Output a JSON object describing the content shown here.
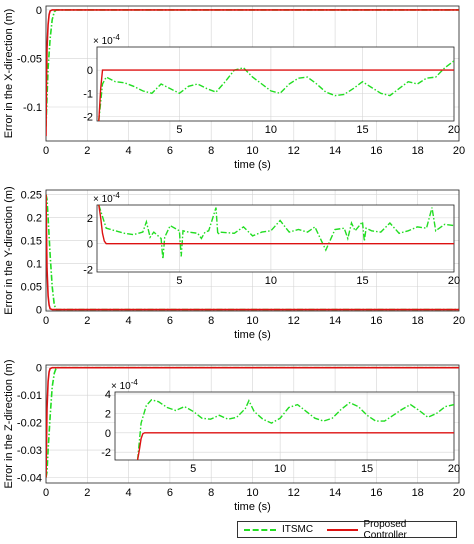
{
  "chart_data": [
    {
      "type": "line",
      "ylabel": "Error in the X-direction (m)",
      "xlabel": "time (s)",
      "xlim": [
        0,
        20
      ],
      "ylim": [
        -0.135,
        0.004
      ],
      "xticks": [
        "0",
        "2",
        "4",
        "6",
        "8",
        "10",
        "12",
        "14",
        "16",
        "18",
        "20"
      ],
      "yticks": [
        "0",
        "-0.05",
        "-0.1"
      ],
      "grid": true,
      "series": [
        {
          "name": "ITSMC",
          "color": "#22dd22",
          "style": "dashdot",
          "x": [
            0,
            0.05,
            0.1,
            0.2,
            0.3,
            0.4,
            0.5,
            20
          ],
          "y": [
            -0.12,
            -0.09,
            -0.06,
            -0.03,
            -0.01,
            -0.002,
            0,
            0
          ]
        },
        {
          "name": "Proposed Controller",
          "color": "#dd1111",
          "style": "solid",
          "x": [
            0,
            0.02,
            0.05,
            0.1,
            0.15,
            0.2,
            0.3,
            20
          ],
          "y": [
            -0.13,
            -0.08,
            -0.04,
            -0.015,
            -0.005,
            -0.001,
            0,
            0
          ]
        }
      ],
      "inset": {
        "xlim": [
          0.5,
          20
        ],
        "ylim": [
          -2.2,
          1
        ],
        "xticks": [
          "5",
          "10",
          "15",
          "20"
        ],
        "yticks": [
          "0",
          "-1",
          "-2"
        ],
        "exponent": "× 10^-4",
        "series": [
          {
            "name": "ITSMC",
            "x": [
              0.6,
              0.8,
              1,
              1.5,
              2,
              2.5,
              3,
              3.5,
              4,
              4.5,
              5,
              5.5,
              6,
              6.5,
              7,
              7.5,
              8,
              8.5,
              9,
              9.5,
              10,
              10.5,
              11,
              11.5,
              12,
              12.5,
              13,
              13.5,
              14,
              14.5,
              15,
              15.5,
              16,
              16.5,
              17,
              17.5,
              18,
              18.5,
              19,
              19.5,
              20
            ],
            "y": [
              -2.2,
              -0.6,
              -0.3,
              -0.5,
              -0.55,
              -0.7,
              -0.9,
              -1.0,
              -0.6,
              -0.8,
              -1.0,
              -0.7,
              -0.6,
              -0.8,
              -0.95,
              -0.5,
              0,
              0.1,
              -0.3,
              -0.6,
              -0.9,
              -1.0,
              -0.6,
              -0.35,
              -0.3,
              -0.6,
              -0.95,
              -1.1,
              -1.05,
              -0.8,
              -0.5,
              -0.75,
              -1.0,
              -1.1,
              -0.8,
              -0.5,
              -0.6,
              -0.35,
              -0.3,
              0.1,
              0.4
            ]
          },
          {
            "name": "Proposed Controller",
            "x": [
              0.6,
              0.7,
              0.8,
              1,
              2,
              20
            ],
            "y": [
              -2.2,
              -0.8,
              0,
              0,
              0,
              0
            ]
          }
        ]
      }
    },
    {
      "type": "line",
      "ylabel": "Error in the Y-direction (m)",
      "xlabel": "time (s)",
      "xlim": [
        0,
        20
      ],
      "ylim": [
        -0.003,
        0.26
      ],
      "xticks": [
        "0",
        "2",
        "4",
        "6",
        "8",
        "10",
        "12",
        "14",
        "16",
        "18",
        "20"
      ],
      "yticks": [
        "0.25",
        "0.2",
        "0.15",
        "0.1",
        "0.05",
        "0"
      ],
      "grid": true,
      "series": [
        {
          "name": "ITSMC",
          "color": "#22dd22",
          "style": "dashdot",
          "x": [
            0,
            0.05,
            0.1,
            0.2,
            0.3,
            0.4,
            0.5,
            20
          ],
          "y": [
            0.25,
            0.24,
            0.2,
            0.12,
            0.05,
            0.01,
            0,
            0
          ]
        },
        {
          "name": "Proposed Controller",
          "color": "#dd1111",
          "style": "solid",
          "x": [
            0,
            0.02,
            0.05,
            0.1,
            0.15,
            0.2,
            0.3,
            20
          ],
          "y": [
            0.25,
            0.18,
            0.09,
            0.03,
            0.01,
            0.002,
            0,
            0
          ]
        }
      ],
      "inset": {
        "xlim": [
          0.5,
          20
        ],
        "ylim": [
          -2.2,
          3
        ],
        "xticks": [
          "5",
          "10",
          "15",
          "20"
        ],
        "yticks": [
          "2",
          "0",
          "-2"
        ],
        "exponent": "× 10^-4",
        "series": [
          {
            "name": "ITSMC",
            "x": [
              0.6,
              1,
              1.5,
              2,
              2.5,
              3,
              3.2,
              3.4,
              3.6,
              4,
              4.1,
              4.2,
              4.5,
              5,
              5.1,
              5.2,
              5.5,
              6,
              6.2,
              6.4,
              6.6,
              7,
              7.1,
              7.2,
              8,
              8.5,
              9,
              9.5,
              10,
              10.5,
              11,
              11.5,
              12,
              12.4,
              12.6,
              13,
              13.5,
              14,
              14.2,
              14.4,
              14.6,
              15,
              15.1,
              15.2,
              15.5,
              16,
              16.5,
              17,
              17.5,
              18,
              18.5,
              18.8,
              19,
              19.5,
              20
            ],
            "y": [
              3,
              1.2,
              1.0,
              0.8,
              0.7,
              0.9,
              1.7,
              0.5,
              0.9,
              0.4,
              -1.2,
              0.5,
              1.4,
              1.0,
              -1.0,
              1.0,
              0.9,
              0.8,
              0.4,
              0.9,
              1.0,
              2.8,
              0.7,
              0.9,
              0.8,
              1.3,
              0.6,
              0.9,
              1.0,
              1.8,
              0.9,
              1.1,
              0.9,
              1.3,
              0.7,
              -0.5,
              1.1,
              1.2,
              0.4,
              1.6,
              1.0,
              1.7,
              0.2,
              1.2,
              1.0,
              0.9,
              1.6,
              0.8,
              1.0,
              1.3,
              1.2,
              2.8,
              1.0,
              1.5,
              1.4
            ]
          },
          {
            "name": "Proposed Controller",
            "x": [
              0.6,
              0.7,
              0.8,
              0.9,
              1,
              2,
              20
            ],
            "y": [
              3,
              2.0,
              0.8,
              0.2,
              0,
              0,
              0
            ]
          }
        ]
      }
    },
    {
      "type": "line",
      "ylabel": "Error in the Z-direction (m)",
      "xlabel": "time (s)",
      "xlim": [
        0,
        20
      ],
      "ylim": [
        -0.042,
        0.001
      ],
      "xticks": [
        "0",
        "2",
        "4",
        "6",
        "8",
        "10",
        "12",
        "14",
        "16",
        "18",
        "20"
      ],
      "yticks": [
        "0",
        "-0.01",
        "-0.02",
        "-0.03",
        "-0.04"
      ],
      "grid": true,
      "series": [
        {
          "name": "ITSMC",
          "color": "#22dd22",
          "style": "dashdot",
          "x": [
            0,
            0.05,
            0.1,
            0.2,
            0.3,
            0.4,
            0.5,
            20
          ],
          "y": [
            -0.04,
            -0.038,
            -0.03,
            -0.018,
            -0.007,
            -0.002,
            0,
            0
          ]
        },
        {
          "name": "Proposed Controller",
          "color": "#dd1111",
          "style": "solid",
          "x": [
            0,
            0.02,
            0.05,
            0.1,
            0.15,
            0.2,
            0.3,
            20
          ],
          "y": [
            -0.04,
            -0.03,
            -0.015,
            -0.005,
            -0.0015,
            -0.0003,
            0,
            0
          ]
        }
      ],
      "inset": {
        "xlim": [
          0.5,
          20
        ],
        "ylim": [
          -2.8,
          4.2
        ],
        "xticks": [
          "5",
          "10",
          "15",
          "20"
        ],
        "yticks": [
          "4",
          "2",
          "0",
          "-2"
        ],
        "exponent": "× 10^-4",
        "series": [
          {
            "name": "ITSMC",
            "x": [
              1.8,
              2,
              2.3,
              2.6,
              3,
              3.5,
              4,
              4.5,
              5,
              5.5,
              6,
              6.5,
              7,
              7.5,
              8,
              8.2,
              8.5,
              9,
              9.5,
              10,
              10.5,
              11,
              11.5,
              12,
              12.5,
              13,
              13.5,
              14,
              14.5,
              15,
              15.5,
              16,
              16.5,
              17,
              17.5,
              18,
              18.5,
              19,
              19.5,
              20
            ],
            "y": [
              -2.8,
              1.0,
              2.8,
              3.4,
              3.2,
              2.6,
              2.3,
              2.7,
              2.2,
              1.5,
              1.4,
              1.8,
              1.4,
              1.6,
              2.5,
              3.3,
              2.2,
              1.4,
              1.0,
              1.5,
              2.6,
              2.9,
              2.2,
              1.5,
              1.2,
              1.5,
              2.4,
              3.1,
              2.7,
              1.8,
              1.2,
              1.2,
              1.8,
              2.4,
              2.9,
              2.3,
              1.6,
              2.0,
              2.7,
              2.9
            ]
          },
          {
            "name": "Proposed Controller",
            "x": [
              1.8,
              1.9,
              2,
              2.1,
              2.2,
              3,
              20
            ],
            "y": [
              -2.8,
              -1.8,
              -0.6,
              -0.1,
              0,
              0,
              0
            ]
          }
        ]
      }
    }
  ],
  "legend": {
    "placement": "bottom-right",
    "entries": [
      {
        "label": "ITSMC",
        "color": "#22dd22",
        "style": "dashdot"
      },
      {
        "label": "Proposed Controller",
        "color": "#dd1111",
        "style": "solid"
      }
    ]
  }
}
